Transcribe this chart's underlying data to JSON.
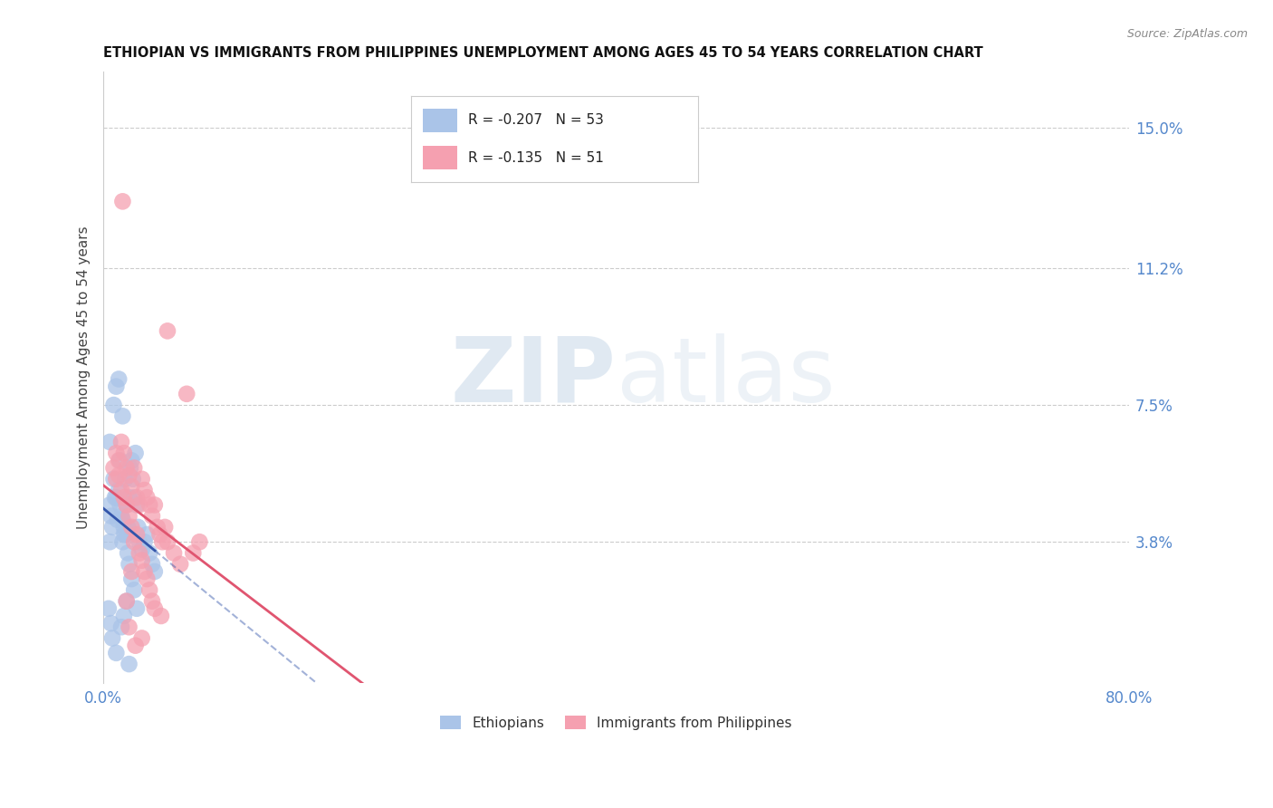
{
  "title": "ETHIOPIAN VS IMMIGRANTS FROM PHILIPPINES UNEMPLOYMENT AMONG AGES 45 TO 54 YEARS CORRELATION CHART",
  "source": "Source: ZipAtlas.com",
  "ylabel": "Unemployment Among Ages 45 to 54 years",
  "y_ticks": [
    0.038,
    0.075,
    0.112,
    0.15
  ],
  "y_tick_labels": [
    "3.8%",
    "7.5%",
    "11.2%",
    "15.0%"
  ],
  "x_range": [
    0.0,
    0.8
  ],
  "y_range": [
    0.0,
    0.165
  ],
  "legend_blue_R": "-0.207",
  "legend_blue_N": "53",
  "legend_pink_R": "-0.135",
  "legend_pink_N": "51",
  "legend_label_blue": "Ethiopians",
  "legend_label_pink": "Immigrants from Philippines",
  "watermark_zip": "ZIP",
  "watermark_atlas": "atlas",
  "blue_color": "#aac4e8",
  "pink_color": "#f5a0b0",
  "blue_line_color": "#3355aa",
  "pink_line_color": "#e05570",
  "blue_dots": [
    [
      0.005,
      0.048
    ],
    [
      0.007,
      0.042
    ],
    [
      0.008,
      0.055
    ],
    [
      0.01,
      0.05
    ],
    [
      0.012,
      0.052
    ],
    [
      0.013,
      0.048
    ],
    [
      0.014,
      0.045
    ],
    [
      0.015,
      0.044
    ],
    [
      0.016,
      0.04
    ],
    [
      0.017,
      0.055
    ],
    [
      0.018,
      0.048
    ],
    [
      0.019,
      0.042
    ],
    [
      0.02,
      0.05
    ],
    [
      0.021,
      0.058
    ],
    [
      0.022,
      0.06
    ],
    [
      0.023,
      0.055
    ],
    [
      0.024,
      0.05
    ],
    [
      0.025,
      0.062
    ],
    [
      0.026,
      0.048
    ],
    [
      0.027,
      0.042
    ],
    [
      0.028,
      0.038
    ],
    [
      0.03,
      0.036
    ],
    [
      0.032,
      0.038
    ],
    [
      0.034,
      0.04
    ],
    [
      0.036,
      0.035
    ],
    [
      0.038,
      0.032
    ],
    [
      0.04,
      0.03
    ],
    [
      0.005,
      0.038
    ],
    [
      0.006,
      0.045
    ],
    [
      0.009,
      0.05
    ],
    [
      0.011,
      0.044
    ],
    [
      0.013,
      0.06
    ],
    [
      0.015,
      0.038
    ],
    [
      0.016,
      0.042
    ],
    [
      0.017,
      0.04
    ],
    [
      0.019,
      0.035
    ],
    [
      0.02,
      0.032
    ],
    [
      0.022,
      0.028
    ],
    [
      0.024,
      0.025
    ],
    [
      0.026,
      0.02
    ],
    [
      0.004,
      0.02
    ],
    [
      0.006,
      0.016
    ],
    [
      0.007,
      0.012
    ],
    [
      0.01,
      0.008
    ],
    [
      0.014,
      0.015
    ],
    [
      0.016,
      0.018
    ],
    [
      0.018,
      0.022
    ],
    [
      0.02,
      0.005
    ],
    [
      0.005,
      0.065
    ],
    [
      0.008,
      0.075
    ],
    [
      0.01,
      0.08
    ],
    [
      0.012,
      0.082
    ],
    [
      0.015,
      0.072
    ]
  ],
  "pink_dots": [
    [
      0.015,
      0.13
    ],
    [
      0.05,
      0.095
    ],
    [
      0.01,
      0.055
    ],
    [
      0.012,
      0.06
    ],
    [
      0.014,
      0.065
    ],
    [
      0.016,
      0.062
    ],
    [
      0.018,
      0.058
    ],
    [
      0.02,
      0.056
    ],
    [
      0.022,
      0.053
    ],
    [
      0.024,
      0.058
    ],
    [
      0.026,
      0.05
    ],
    [
      0.028,
      0.048
    ],
    [
      0.03,
      0.055
    ],
    [
      0.032,
      0.052
    ],
    [
      0.034,
      0.05
    ],
    [
      0.036,
      0.048
    ],
    [
      0.038,
      0.045
    ],
    [
      0.04,
      0.048
    ],
    [
      0.042,
      0.042
    ],
    [
      0.044,
      0.04
    ],
    [
      0.046,
      0.038
    ],
    [
      0.048,
      0.042
    ],
    [
      0.05,
      0.038
    ],
    [
      0.055,
      0.035
    ],
    [
      0.06,
      0.032
    ],
    [
      0.065,
      0.078
    ],
    [
      0.07,
      0.035
    ],
    [
      0.075,
      0.038
    ],
    [
      0.008,
      0.058
    ],
    [
      0.01,
      0.062
    ],
    [
      0.012,
      0.056
    ],
    [
      0.014,
      0.052
    ],
    [
      0.016,
      0.05
    ],
    [
      0.018,
      0.048
    ],
    [
      0.02,
      0.045
    ],
    [
      0.022,
      0.042
    ],
    [
      0.024,
      0.038
    ],
    [
      0.026,
      0.04
    ],
    [
      0.028,
      0.035
    ],
    [
      0.03,
      0.033
    ],
    [
      0.032,
      0.03
    ],
    [
      0.034,
      0.028
    ],
    [
      0.036,
      0.025
    ],
    [
      0.038,
      0.022
    ],
    [
      0.04,
      0.02
    ],
    [
      0.045,
      0.018
    ],
    [
      0.022,
      0.03
    ],
    [
      0.018,
      0.022
    ],
    [
      0.02,
      0.015
    ],
    [
      0.025,
      0.01
    ],
    [
      0.03,
      0.012
    ]
  ]
}
